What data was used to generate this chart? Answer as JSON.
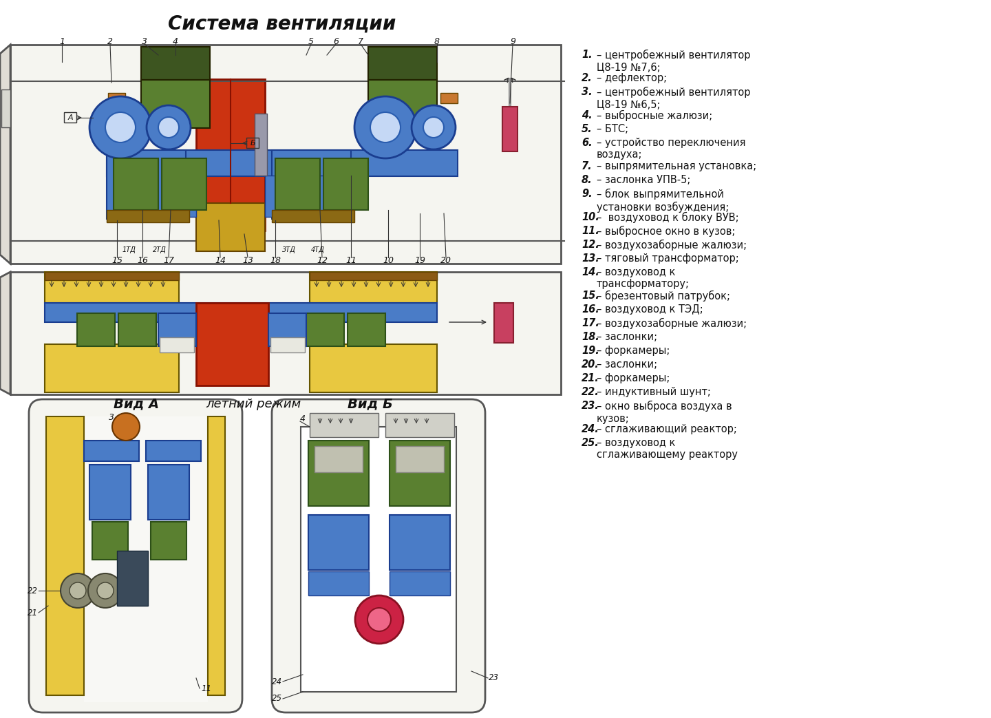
{
  "title": "Система вентиляции",
  "background_color": "#ffffff",
  "legend_items": [
    {
      "num": "1",
      "bold": true,
      "text": "– центробежный вентилятор\nЦ8-19 №7,6;"
    },
    {
      "num": "2",
      "bold": true,
      "text": "– дефлектор;"
    },
    {
      "num": "3",
      "bold": true,
      "text": "– центробежный вентилятор\nЦ8-19 №6,5;"
    },
    {
      "num": "4",
      "bold": true,
      "text": "– выбросные жалюзи;"
    },
    {
      "num": "5",
      "bold": true,
      "text": "– БТС;"
    },
    {
      "num": "6",
      "bold": true,
      "text": "– устройство переключения\nвоздуха;"
    },
    {
      "num": "7",
      "bold": true,
      "text": "– выпрямительная установка;"
    },
    {
      "num": "8",
      "bold": true,
      "text": "– заслонка УПВ-5;"
    },
    {
      "num": "9",
      "bold": true,
      "text": "– блок выпрямительной\nустановки возбуждения;"
    },
    {
      "num": "10",
      "bold": true,
      "text": "–  воздуховод к блоку ВУВ;"
    },
    {
      "num": "11",
      "bold": true,
      "text": "– выбросное окно в кузов;"
    },
    {
      "num": "12",
      "bold": true,
      "text": "– воздухозаборные жалюзи;"
    },
    {
      "num": "13",
      "bold": true,
      "text": "– тяговый трансформатор;"
    },
    {
      "num": "14",
      "bold": true,
      "text": "– воздуховод к\nтрансформатору;"
    },
    {
      "num": "15",
      "bold": true,
      "text": "– брезентовый патрубок;"
    },
    {
      "num": "16",
      "bold": true,
      "text": "– воздуховод к ТЭД;"
    },
    {
      "num": "17",
      "bold": true,
      "text": "– воздухозаборные жалюзи;"
    },
    {
      "num": "18",
      "bold": true,
      "text": "– заслонки;"
    },
    {
      "num": "19",
      "bold": true,
      "text": "– форкамеры;"
    },
    {
      "num": "20",
      "bold": true,
      "text": "– заслонки;"
    },
    {
      "num": "21",
      "bold": true,
      "text": "– форкамеры;"
    },
    {
      "num": "22",
      "bold": true,
      "text": "– индуктивный шунт;"
    },
    {
      "num": "23",
      "bold": true,
      "text": "– окно выброса воздуха в\nкузов;"
    },
    {
      "num": "24",
      "bold": true,
      "text": "– сглаживающий реактор;"
    },
    {
      "num": "25",
      "bold": true,
      "text": "– воздуховод к\nсглаживающему реактору"
    }
  ],
  "fig_width": 14.4,
  "fig_height": 10.43,
  "dpi": 100
}
